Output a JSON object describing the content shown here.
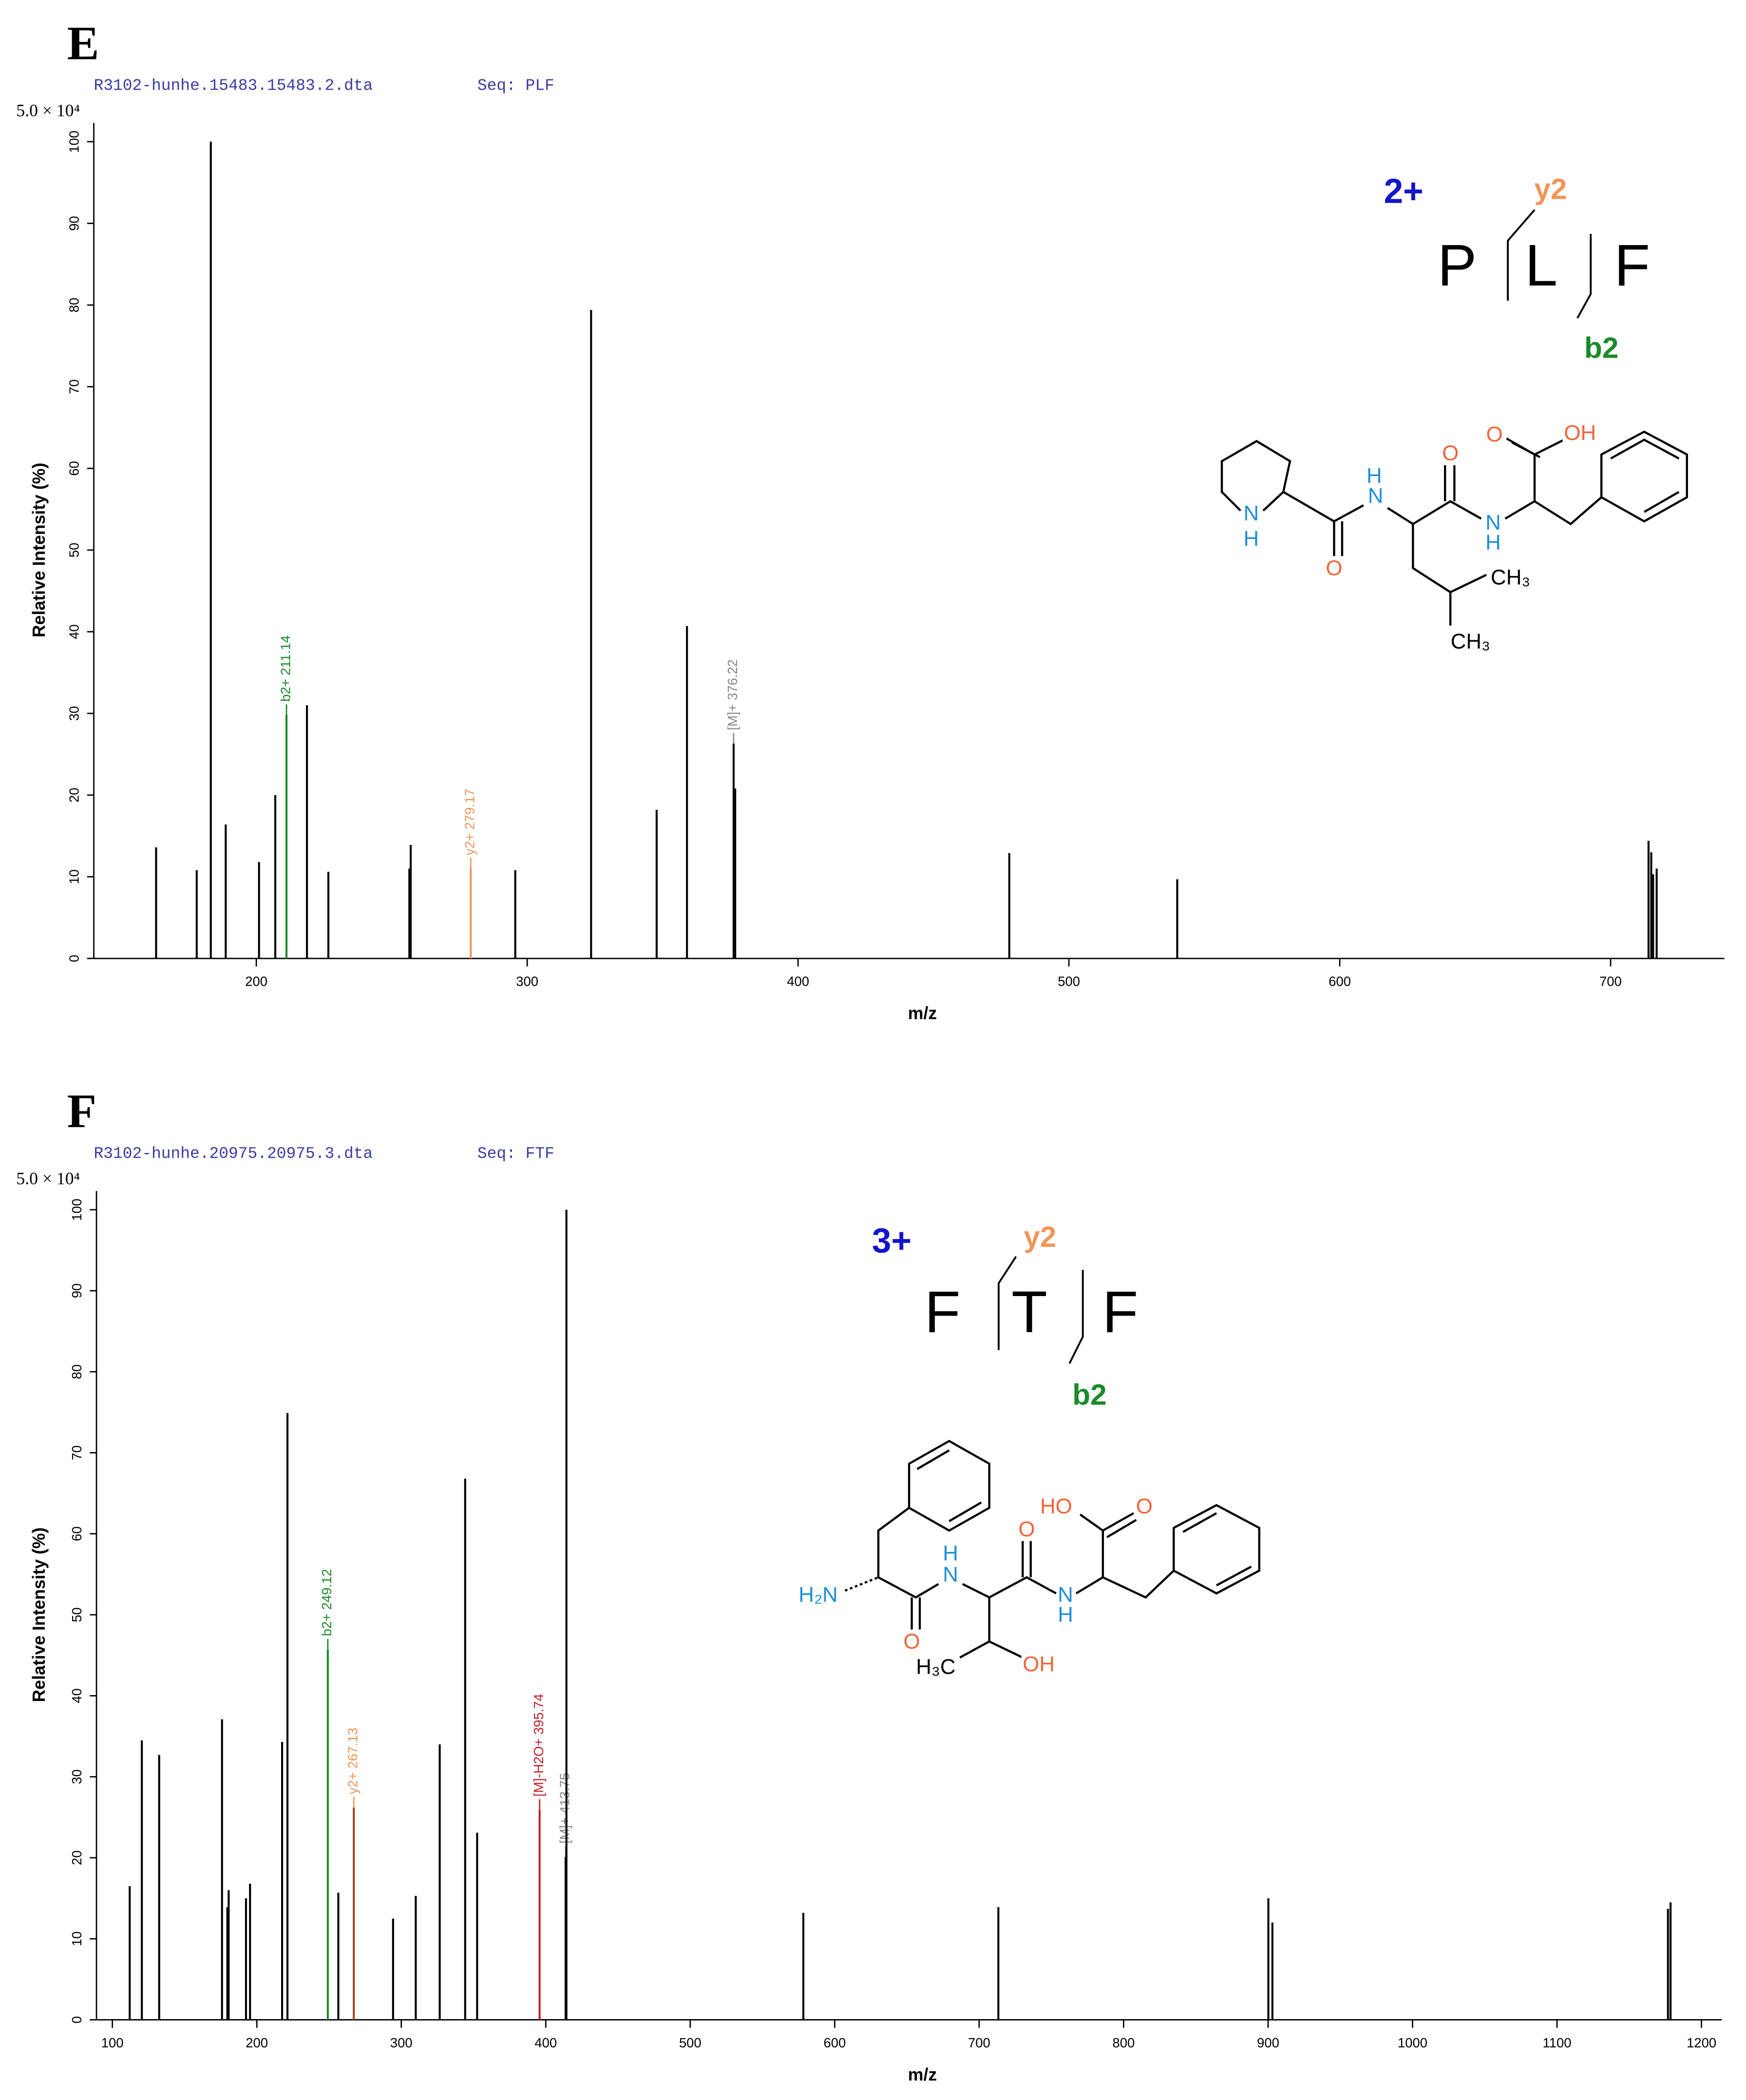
{
  "chart_data": [
    {
      "type": "stem",
      "panel": "E",
      "file": "R3102-hunhe.15483.15483.2.dta",
      "seq": "Seq: PLF",
      "scale_label": "5.0 × 10⁴",
      "xlabel": "m/z",
      "ylabel": "Relative  Intensity (%)",
      "xlim": [
        140,
        742
      ],
      "ylim": [
        0,
        100
      ],
      "xticks": [
        200,
        300,
        400,
        500,
        600,
        700
      ],
      "yticks": [
        0,
        10,
        20,
        30,
        40,
        50,
        60,
        70,
        80,
        90,
        100
      ],
      "x": [
        163,
        178,
        183.2,
        188.7,
        201,
        207,
        211.14,
        218.7,
        226.6,
        256.5,
        257,
        279.17,
        295.6,
        323.6,
        347.8,
        359,
        376.22,
        376.8,
        478,
        540,
        714,
        715,
        715.7,
        717
      ],
      "values": [
        13.6,
        10.8,
        100,
        16.4,
        11.8,
        20,
        29.8,
        31,
        10.6,
        11,
        13.9,
        11,
        10.8,
        79.4,
        18.2,
        40.7,
        26.3,
        20.8,
        12.9,
        9.7,
        14.4,
        13,
        10.3,
        11
      ],
      "colors": [
        "#000",
        "#000",
        "#000",
        "#000",
        "#000",
        "#000",
        "#1a8a2a",
        "#000",
        "#000",
        "#000",
        "#000",
        "#f0965a",
        "#000",
        "#000",
        "#000",
        "#000",
        "#000",
        "#000",
        "#000",
        "#000",
        "#000",
        "#000",
        "#000",
        "#000"
      ],
      "peak_labels": [
        null,
        null,
        null,
        null,
        null,
        null,
        "b2+ 211.14",
        null,
        null,
        null,
        null,
        "y2+ 279.17",
        null,
        null,
        null,
        null,
        "[M]+ 376.22",
        null,
        null,
        null,
        null,
        null,
        null,
        null
      ],
      "label_colors": [
        null,
        null,
        null,
        null,
        null,
        null,
        "#1a8a2a",
        null,
        null,
        null,
        null,
        "#f0965a",
        null,
        null,
        null,
        null,
        "#888888",
        null,
        null,
        null,
        null,
        null,
        null,
        null
      ],
      "ion_charge": "2+",
      "fragment_sequence": [
        "P",
        "L",
        "F"
      ],
      "y_ion": "y2",
      "b_ion": "b2",
      "structure_labels": [
        "N",
        "H",
        "O",
        "N",
        "H",
        "O",
        "N",
        "H",
        "O",
        "OH",
        "CH₃",
        "CH₃"
      ]
    },
    {
      "type": "stem",
      "panel": "F",
      "file": "R3102-hunhe.20975.20975.3.dta",
      "seq": "Seq: FTF",
      "scale_label": "5.0 × 10⁴",
      "xlabel": "m/z",
      "ylabel": "Relative  Intensity (%)",
      "xlim": [
        89,
        1214
      ],
      "ylim": [
        0,
        100
      ],
      "xticks": [
        100,
        200,
        300,
        400,
        500,
        600,
        700,
        800,
        900,
        1000,
        1100,
        1200
      ],
      "yticks": [
        0,
        10,
        20,
        30,
        40,
        50,
        60,
        70,
        80,
        90,
        100
      ],
      "x": [
        112,
        120.4,
        132.4,
        175.9,
        179.6,
        180.5,
        192.5,
        195.3,
        217.5,
        221.2,
        249.12,
        256.4,
        267.13,
        294.3,
        310,
        326.6,
        344.2,
        352.5,
        395.74,
        413.75,
        414.3,
        578.3,
        713.3,
        900.2,
        903,
        1176.8,
        1178.6
      ],
      "values": [
        16.5,
        34.5,
        32.7,
        37.1,
        13.9,
        16,
        15,
        16.8,
        34.3,
        74.9,
        45.7,
        15.7,
        26.2,
        12.5,
        15.3,
        34,
        66.8,
        23.1,
        25.9,
        20.1,
        100,
        13.2,
        13.9,
        15,
        12,
        13.7,
        14.5
      ],
      "colors": [
        "#000",
        "#000",
        "#000",
        "#000",
        "#000",
        "#000",
        "#000",
        "#000",
        "#000",
        "#000",
        "#1a8a2a",
        "#000",
        "#a0451d",
        "#000",
        "#000",
        "#000",
        "#000",
        "#000",
        "#c0202a",
        "#000",
        "#000",
        "#000",
        "#000",
        "#000",
        "#000",
        "#000",
        "#000"
      ],
      "peak_labels": [
        null,
        null,
        null,
        null,
        null,
        null,
        null,
        null,
        null,
        null,
        "b2+ 249.12",
        null,
        "y2+ 267.13",
        null,
        null,
        null,
        null,
        null,
        "[M]-H2O+ 395.74",
        "[M]+ 413.75",
        null,
        null,
        null,
        null,
        null,
        null,
        null
      ],
      "label_colors": [
        null,
        null,
        null,
        null,
        null,
        null,
        null,
        null,
        null,
        null,
        "#1a8a2a",
        null,
        "#f0965a",
        null,
        null,
        null,
        null,
        null,
        "#c0202a",
        "#888888",
        null,
        null,
        null,
        null,
        null,
        null,
        null
      ],
      "ion_charge": "3+",
      "fragment_sequence": [
        "F",
        "T",
        "F"
      ],
      "y_ion": "y2",
      "b_ion": "b2",
      "structure_labels": [
        "H₂N",
        "O",
        "H",
        "N",
        "O",
        "N",
        "H",
        "H₃C",
        "OH",
        "HO",
        "O"
      ]
    }
  ]
}
